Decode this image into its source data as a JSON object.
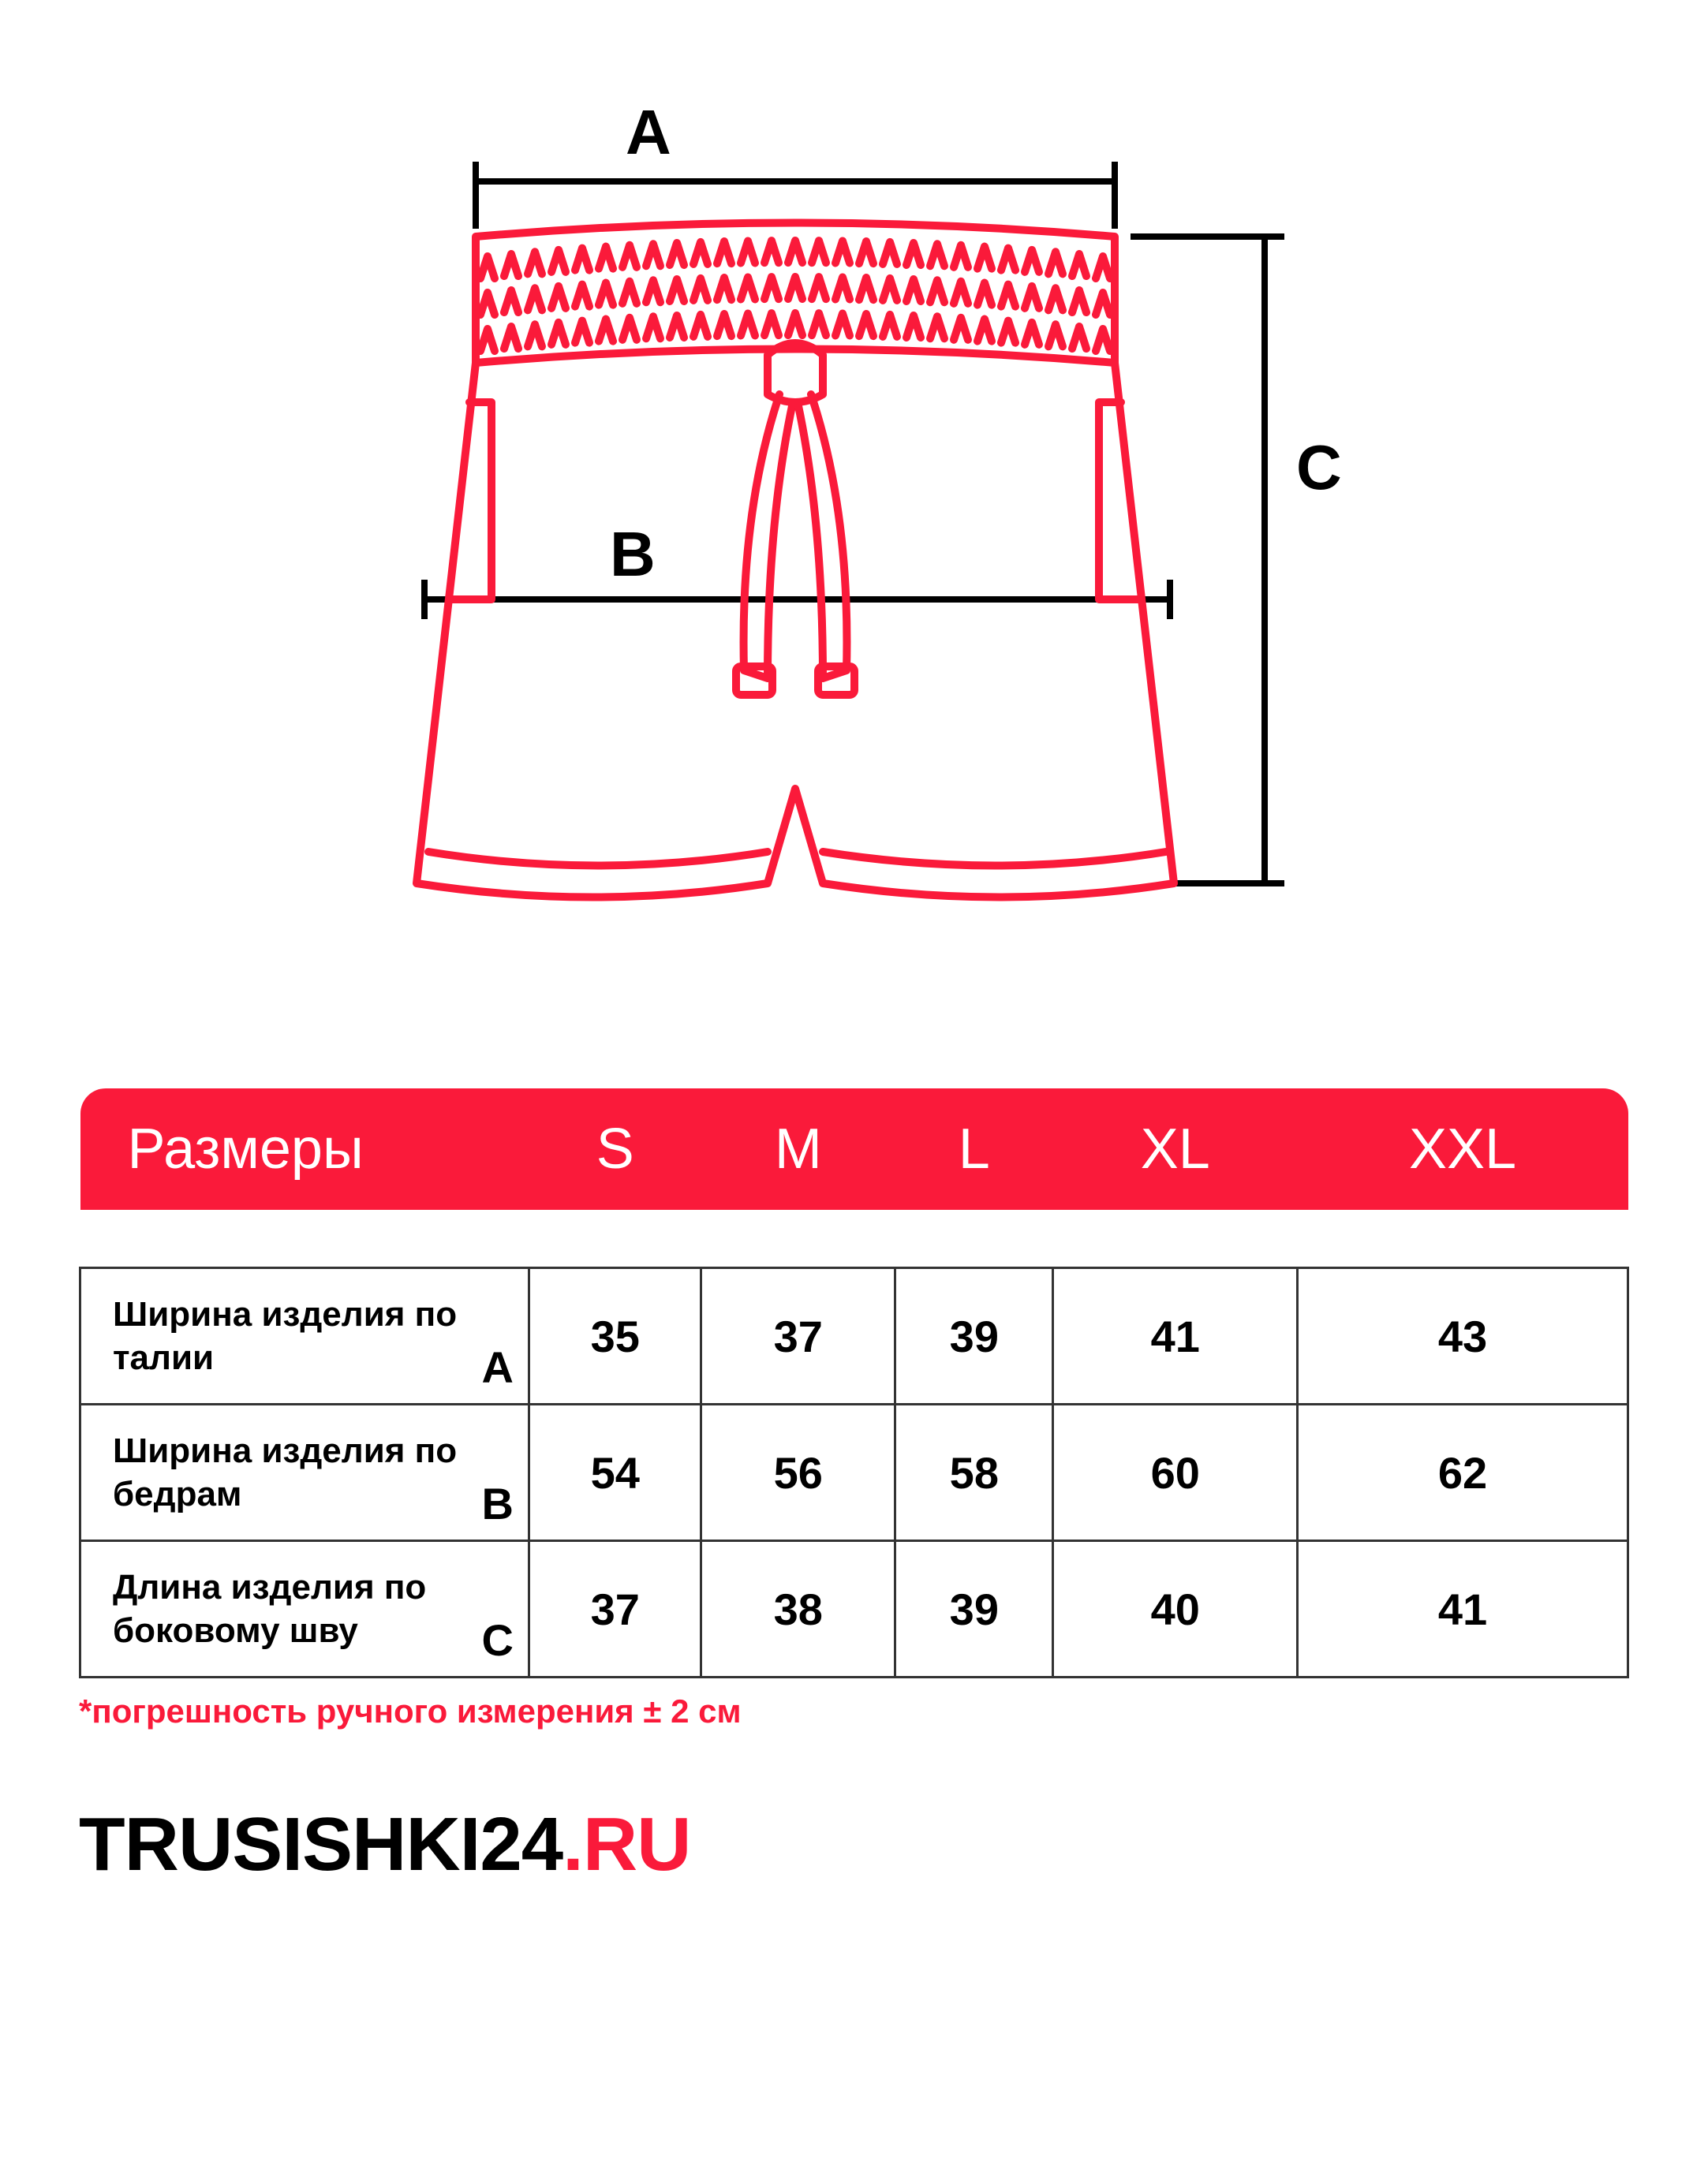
{
  "colors": {
    "accent": "#fa1a3a",
    "black": "#000000",
    "white": "#ffffff",
    "border": "#333333"
  },
  "diagram": {
    "labels": {
      "A": "A",
      "B": "B",
      "C": "C"
    },
    "stroke_width": 10
  },
  "table": {
    "header_label": "Размеры",
    "sizes": [
      "S",
      "M",
      "L",
      "XL",
      "XXL"
    ],
    "rows": [
      {
        "label": "Ширина изделия по талии",
        "tag": "A",
        "values": [
          "35",
          "37",
          "39",
          "41",
          "43"
        ]
      },
      {
        "label": "Ширина изделия по бедрам",
        "tag": "B",
        "values": [
          "54",
          "56",
          "58",
          "60",
          "62"
        ]
      },
      {
        "label": "Длина изделия по боковому шву",
        "tag": "C",
        "values": [
          "37",
          "38",
          "39",
          "40",
          "41"
        ]
      }
    ]
  },
  "footnote": "*погрешность ручного измерения ± 2 см",
  "brand": {
    "main": "TRUSISHKI24",
    "suffix": ".RU"
  }
}
